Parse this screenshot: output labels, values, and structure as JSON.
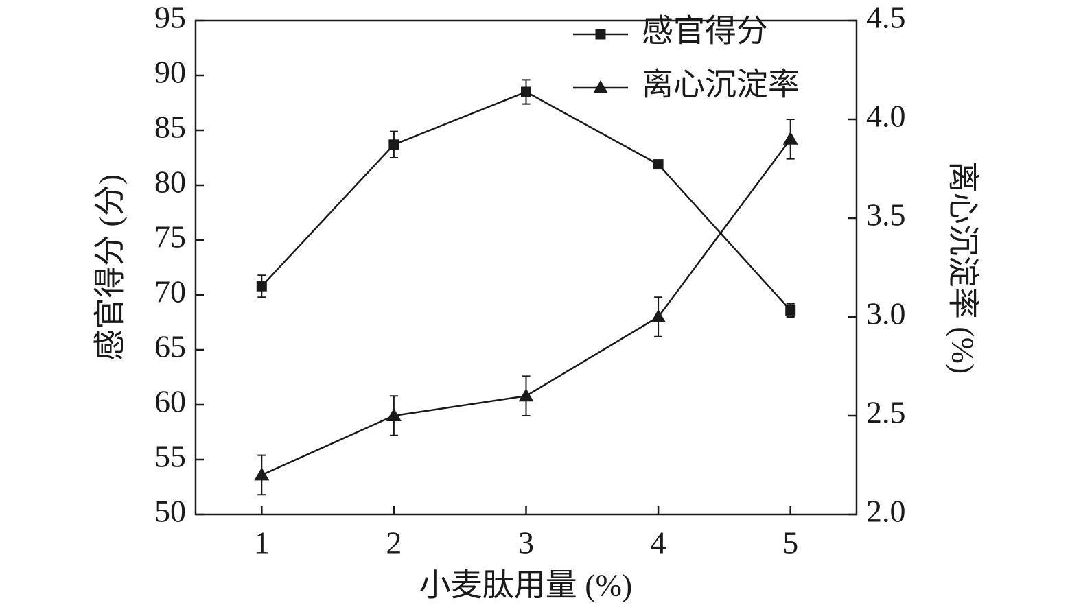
{
  "chart_data": {
    "type": "line",
    "x_label": "小麦肽用量 (%)",
    "y_label": "感官得分 (分)",
    "y2_label": "离心沉淀率 (%)",
    "x": [
      1,
      2,
      3,
      4,
      5
    ],
    "xlim": [
      0.5,
      5.5
    ],
    "xticks": [
      1,
      2,
      3,
      4,
      5
    ],
    "ylim": [
      50,
      95
    ],
    "yticks": [
      50,
      55,
      60,
      65,
      70,
      75,
      80,
      85,
      90,
      95
    ],
    "y2lim": [
      2.0,
      4.5
    ],
    "y2ticks": [
      {
        "value": 2.0,
        "label": "2.0"
      },
      {
        "value": 2.5,
        "label": "2.5"
      },
      {
        "value": 3.0,
        "label": "3.0"
      },
      {
        "value": 3.5,
        "label": "3.5"
      },
      {
        "value": 4.0,
        "label": "4.0"
      },
      {
        "value": 4.5,
        "label": "4.5"
      }
    ],
    "series": [
      {
        "name": "感官得分",
        "color": "#1a1a1a",
        "marker": "square",
        "values": [
          70.8,
          83.7,
          88.5,
          81.9,
          68.6
        ],
        "errors": [
          1.0,
          1.2,
          1.1,
          0.3,
          0.6
        ]
      },
      {
        "name": "离心沉淀率",
        "color": "#1a1a1a",
        "marker": "triangle",
        "axis": "y2",
        "values": [
          2.2,
          2.5,
          2.6,
          3.0,
          3.9
        ],
        "errors": [
          0.1,
          0.1,
          0.1,
          0.1,
          0.1
        ]
      }
    ]
  }
}
